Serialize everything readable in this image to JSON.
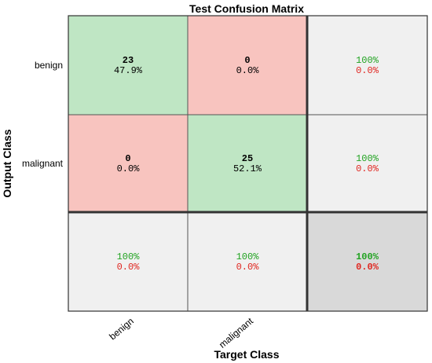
{
  "chart_data": {
    "type": "heatmap",
    "title": "Test Confusion Matrix",
    "xlabel": "Target Class",
    "ylabel": "Output Class",
    "classes": [
      "benign",
      "malignant"
    ],
    "matrix": [
      [
        {
          "count": "23",
          "percent": "47.9%"
        },
        {
          "count": "0",
          "percent": "0.0%"
        }
      ],
      [
        {
          "count": "0",
          "percent": "0.0%"
        },
        {
          "count": "25",
          "percent": "52.1%"
        }
      ]
    ],
    "row_summary": [
      {
        "correct": "100%",
        "error": "0.0%"
      },
      {
        "correct": "100%",
        "error": "0.0%"
      }
    ],
    "col_summary": [
      {
        "correct": "100%",
        "error": "0.0%"
      },
      {
        "correct": "100%",
        "error": "0.0%"
      }
    ],
    "overall": {
      "correct": "100%",
      "error": "0.0%"
    },
    "colors": {
      "correct_cell": "#bfe6c4",
      "wrong_cell": "#f8c4bf",
      "summary_cell": "#f0f0f0",
      "overall_cell": "#d9d9d9",
      "correct_text": "#22a322",
      "error_text": "#e0251f"
    }
  }
}
